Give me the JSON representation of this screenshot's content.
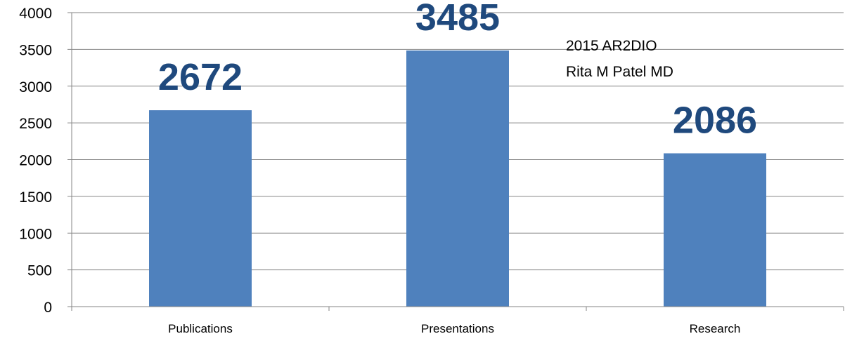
{
  "chart_data": {
    "type": "bar",
    "categories": [
      "Publications",
      "Presentations",
      "Research"
    ],
    "values": [
      2672,
      3485,
      2086
    ],
    "data_labels": [
      "2672",
      "3485",
      "2086"
    ],
    "title": "",
    "xlabel": "",
    "ylabel": "",
    "ylim": [
      0,
      4000
    ],
    "y_ticks": [
      "0",
      "500",
      "1000",
      "1500",
      "2000",
      "2500",
      "3000",
      "3500",
      "4000"
    ],
    "grid": true,
    "legend": "none",
    "annotation": [
      "2015 AR2DIO",
      "Rita M Patel MD"
    ],
    "colors": {
      "bar": "#4f81bd",
      "data_label": "#1f497d",
      "grid": "#868686",
      "text": "#000000"
    }
  }
}
